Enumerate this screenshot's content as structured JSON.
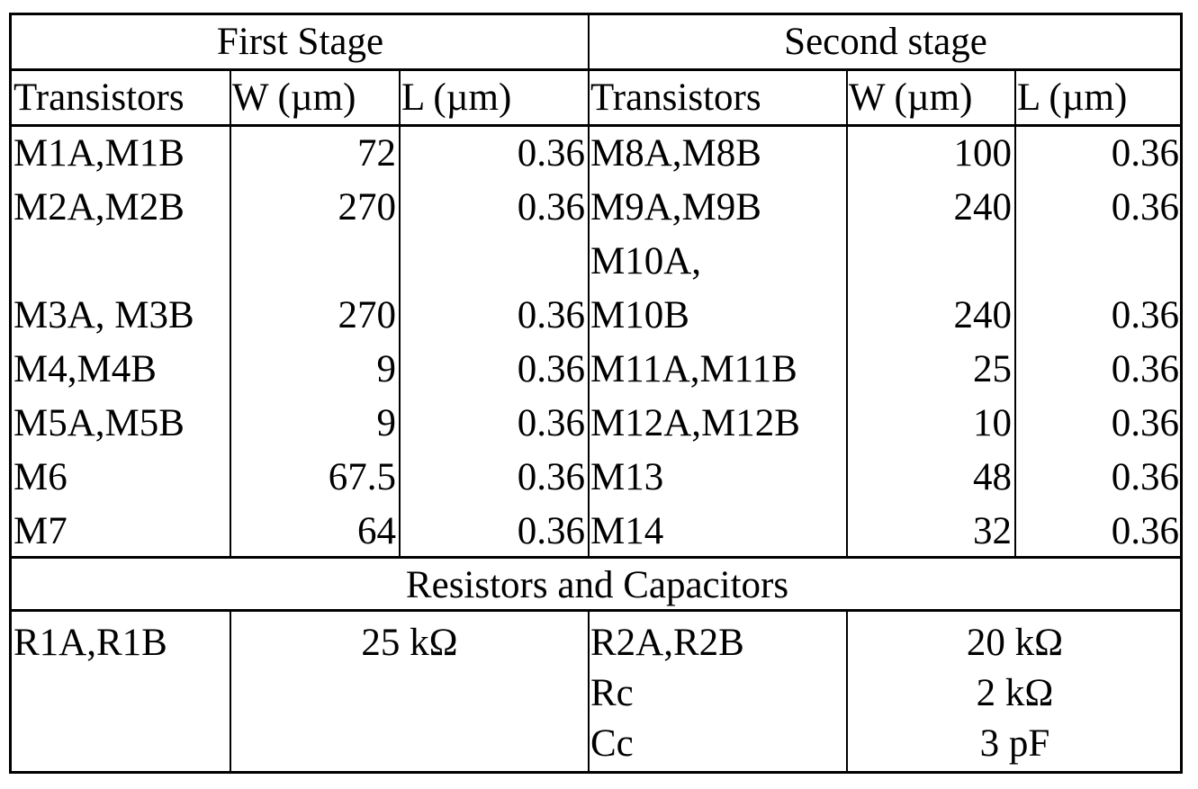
{
  "header": {
    "first_stage": "First Stage",
    "second_stage": "Second stage"
  },
  "columns": {
    "transistors": "Transistors",
    "w": "W (µm)",
    "l": "L (µm)"
  },
  "first_stage_rows": [
    {
      "name": "M1A,M1B",
      "w": "72",
      "l": "0.36"
    },
    {
      "name": "M2A,M2B",
      "w": "270",
      "l": "0.36"
    },
    {
      "name": "M3A, M3B",
      "w": "270",
      "l": "0.36"
    },
    {
      "name": "M4,M4B",
      "w": "9",
      "l": "0.36"
    },
    {
      "name": "M5A,M5B",
      "w": "9",
      "l": "0.36"
    },
    {
      "name": "M6",
      "w": "67.5",
      "l": "0.36"
    },
    {
      "name": "M7",
      "w": "64",
      "l": "0.36"
    }
  ],
  "second_stage_rows": [
    {
      "name": "M8A,M8B",
      "w": "100",
      "l": "0.36"
    },
    {
      "name": "M9A,M9B",
      "w": "240",
      "l": "0.36"
    },
    {
      "name_line1": "M10A,",
      "name_line2": "M10B",
      "w": "240",
      "l": "0.36"
    },
    {
      "name": "M11A,M11B",
      "w": "25",
      "l": "0.36"
    },
    {
      "name": "M12A,M12B",
      "w": "10",
      "l": "0.36"
    },
    {
      "name": "M13",
      "w": "48",
      "l": "0.36"
    },
    {
      "name": "M14",
      "w": "32",
      "l": "0.36"
    }
  ],
  "rc_header": "Resistors and Capacitors",
  "rc": {
    "first": {
      "name": "R1A,R1B",
      "value": "25 kΩ"
    },
    "second": [
      {
        "name": "R2A,R2B",
        "value": "20 kΩ"
      },
      {
        "name": "Rc",
        "value": "2 kΩ"
      },
      {
        "name": "Cc",
        "value": "3 pF"
      }
    ]
  }
}
